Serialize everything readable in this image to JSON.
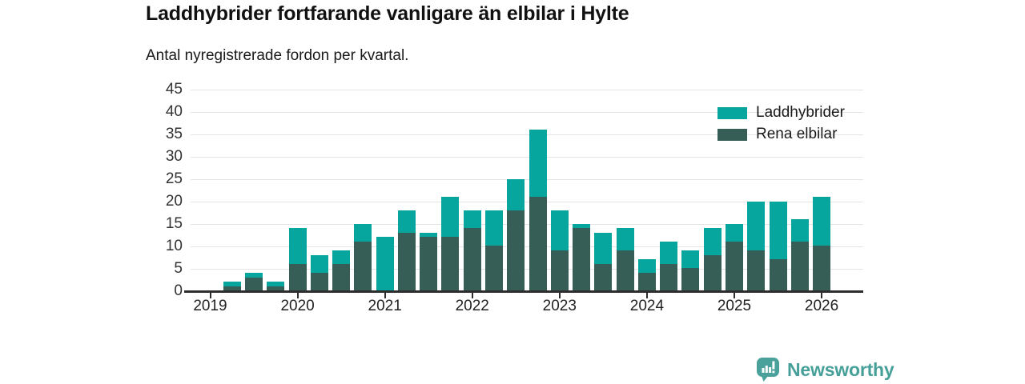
{
  "header": {
    "title": "Laddhybrider fortfarande vanligare än elbilar i Hylte",
    "subtitle": "Antal nyregistrerade fordon per kvartal."
  },
  "legend": [
    {
      "label": "Laddhybrider",
      "color": "#06a69e"
    },
    {
      "label": "Rena elbilar",
      "color": "#375e56"
    }
  ],
  "chart_data": {
    "type": "bar",
    "stacked": true,
    "title": "Laddhybrider fortfarande vanligare än elbilar i Hylte",
    "subtitle": "Antal nyregistrerade fordon per kvartal.",
    "xlabel": "",
    "ylabel": "",
    "ylim": [
      0,
      45
    ],
    "yticks": [
      0,
      5,
      10,
      15,
      20,
      25,
      30,
      35,
      40,
      45
    ],
    "grid": "horizontal",
    "legend_position": "top-right",
    "x_year_ticks": [
      "2019",
      "2020",
      "2021",
      "2022",
      "2023",
      "2024",
      "2025",
      "2026"
    ],
    "categories": [
      "2019Q1",
      "2019Q2",
      "2019Q3",
      "2019Q4",
      "2020Q1",
      "2020Q2",
      "2020Q3",
      "2020Q4",
      "2021Q1",
      "2021Q2",
      "2021Q3",
      "2021Q4",
      "2022Q1",
      "2022Q2",
      "2022Q3",
      "2022Q4",
      "2023Q1",
      "2023Q2",
      "2023Q3",
      "2023Q4",
      "2024Q1",
      "2024Q2",
      "2024Q3",
      "2024Q4",
      "2025Q1",
      "2025Q2",
      "2025Q3",
      "2025Q4",
      "2026Q1"
    ],
    "series": [
      {
        "name": "Laddhybrider",
        "color": "#06a69e",
        "values": [
          0,
          1,
          1,
          1,
          8,
          4,
          3,
          4,
          12,
          5,
          1,
          9,
          4,
          8,
          7,
          15,
          9,
          1,
          7,
          5,
          3,
          5,
          4,
          6,
          4,
          11,
          13,
          5,
          11
        ]
      },
      {
        "name": "Rena elbilar",
        "color": "#375e56",
        "values": [
          0,
          1,
          3,
          1,
          6,
          4,
          6,
          11,
          0,
          13,
          12,
          12,
          14,
          10,
          18,
          21,
          9,
          14,
          6,
          9,
          4,
          6,
          5,
          8,
          11,
          9,
          7,
          11,
          10
        ]
      }
    ],
    "totals": [
      0,
      2,
      4,
      2,
      14,
      8,
      9,
      15,
      12,
      18,
      13,
      21,
      18,
      18,
      25,
      36,
      18,
      15,
      13,
      14,
      7,
      11,
      9,
      14,
      15,
      20,
      20,
      16,
      21
    ]
  },
  "footer": {
    "brand": "Newsworthy",
    "brand_color": "#46a099",
    "logo_icon": "bar-chart-speech-bubble"
  },
  "colors": {
    "axis": "#2d2d2d",
    "grid": "#e4e4e4",
    "tick_text": "#333333"
  }
}
